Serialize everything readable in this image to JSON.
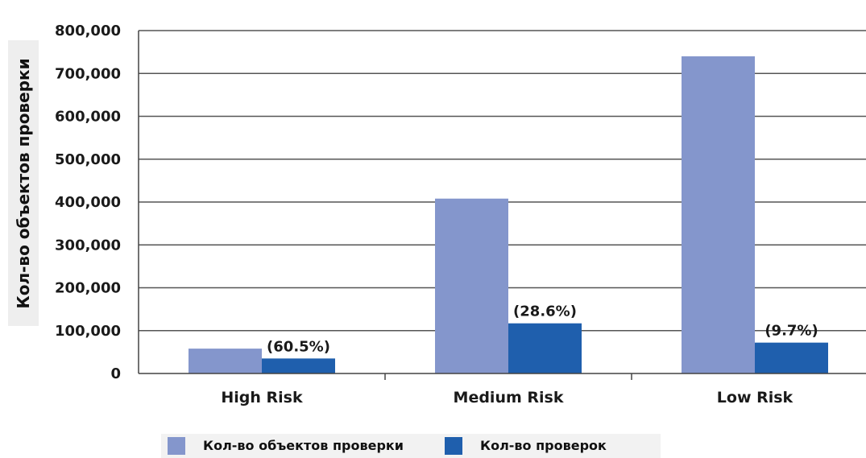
{
  "chart_data": {
    "type": "bar",
    "categories": [
      "High Risk",
      "Medium Risk",
      "Low Risk"
    ],
    "series": [
      {
        "name": "Кол-во объектов проверки",
        "color": "#8496cc",
        "values": [
          58000,
          408000,
          740000
        ]
      },
      {
        "name": "Кол-во проверок",
        "color": "#1f5fad",
        "values": [
          35000,
          117000,
          72000
        ],
        "labels": [
          "(60.5%)",
          "(28.6%)",
          "(9.7%)"
        ]
      }
    ],
    "ylabel": "Кол-во объектов проверки",
    "ylim": [
      0,
      800000
    ],
    "yticks": [
      0,
      100000,
      200000,
      300000,
      400000,
      500000,
      600000,
      700000,
      800000
    ],
    "ytick_labels": [
      "0",
      "100,000",
      "200,000",
      "300,000",
      "400,000",
      "500,000",
      "600,000",
      "700,000",
      "800,000"
    ],
    "grid": "horizontal",
    "legend_position": "bottom"
  }
}
